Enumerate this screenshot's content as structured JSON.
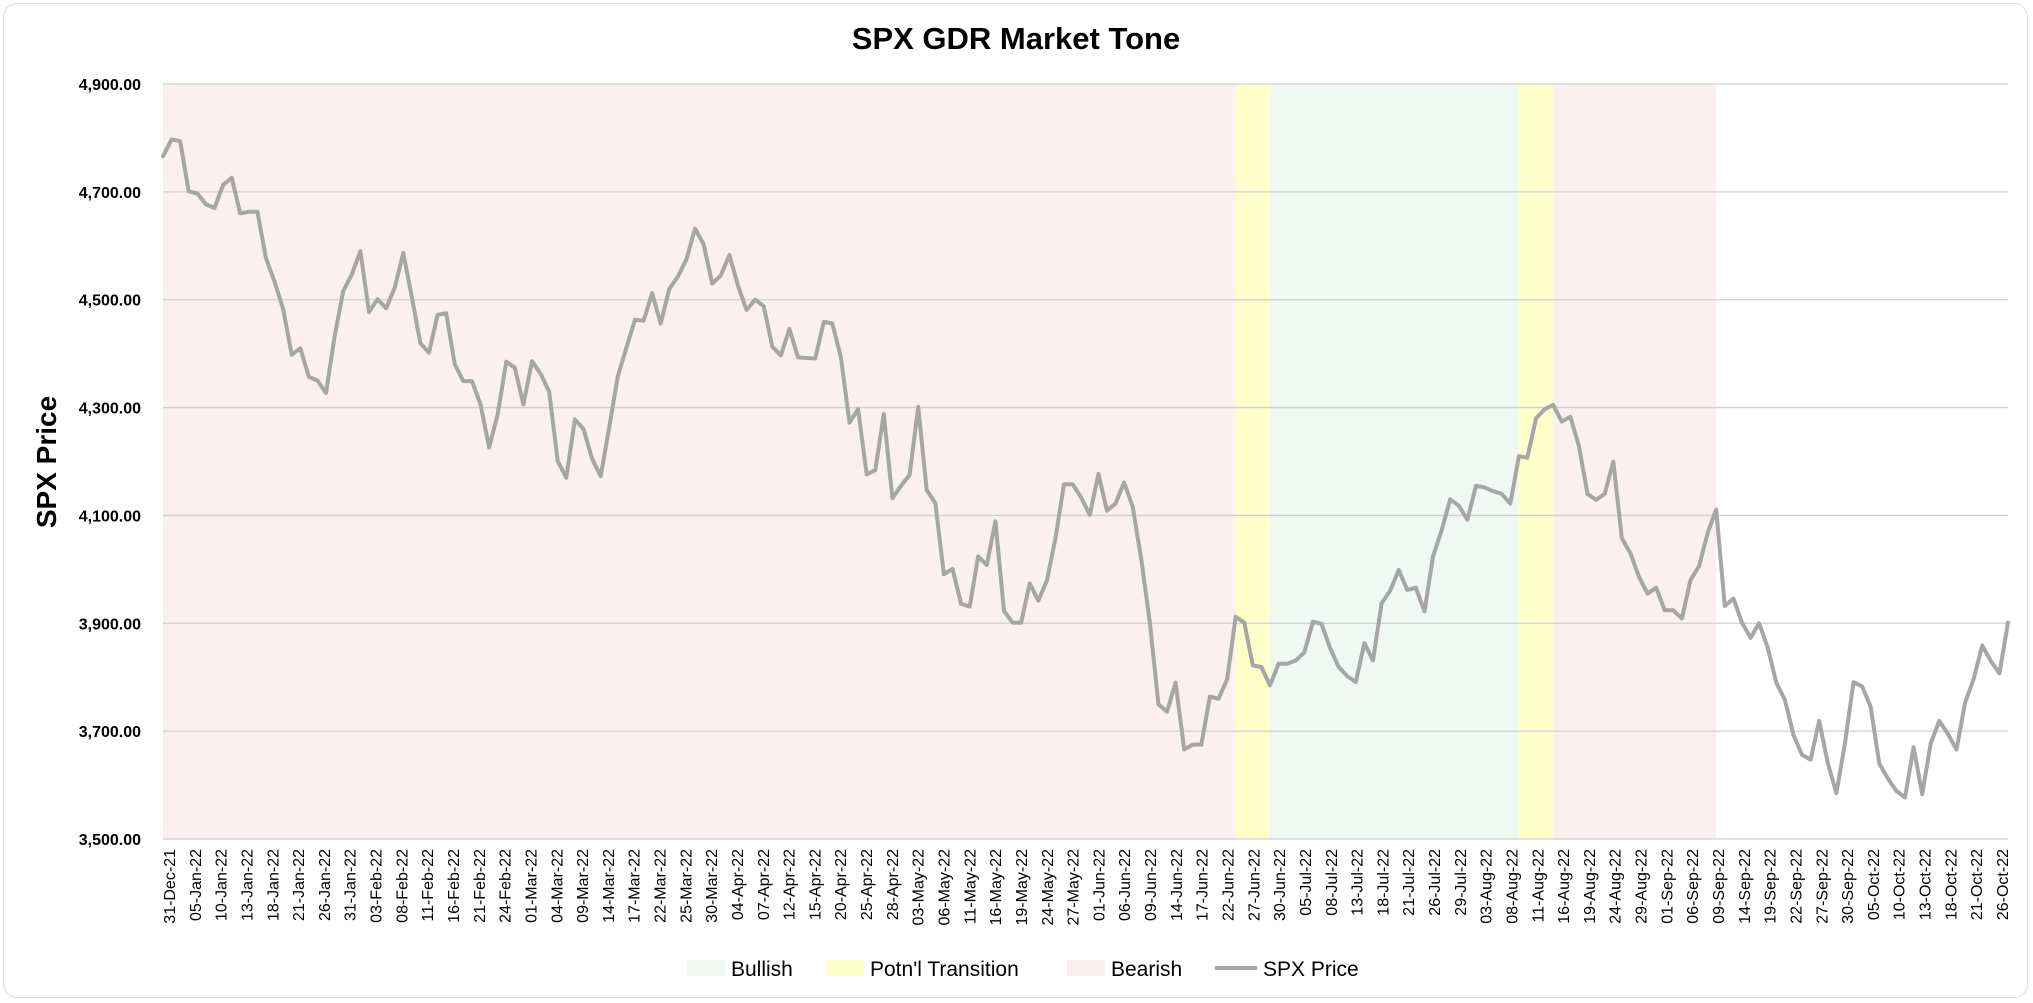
{
  "chart_data": {
    "type": "line",
    "title": "SPX GDR Market Tone",
    "ylabel": "SPX Price",
    "xlabel": "",
    "ylim": [
      3500,
      4900
    ],
    "yticks": [
      "4,900.00",
      "4,700.00",
      "4,500.00",
      "4,300.00",
      "4,100.00",
      "3,900.00",
      "3,700.00",
      "3,500.00"
    ],
    "ytick_values": [
      4900,
      4700,
      4500,
      4300,
      4100,
      3900,
      3700,
      3500
    ],
    "grid": "horizontal",
    "legend_position": "bottom",
    "x_tick_labels": [
      "31-Dec-21",
      "05-Jan-22",
      "10-Jan-22",
      "13-Jan-22",
      "18-Jan-22",
      "21-Jan-22",
      "26-Jan-22",
      "31-Jan-22",
      "03-Feb-22",
      "08-Feb-22",
      "11-Feb-22",
      "16-Feb-22",
      "21-Feb-22",
      "24-Feb-22",
      "01-Mar-22",
      "04-Mar-22",
      "09-Mar-22",
      "14-Mar-22",
      "17-Mar-22",
      "22-Mar-22",
      "25-Mar-22",
      "30-Mar-22",
      "04-Apr-22",
      "07-Apr-22",
      "12-Apr-22",
      "15-Apr-22",
      "20-Apr-22",
      "25-Apr-22",
      "28-Apr-22",
      "03-May-22",
      "06-May-22",
      "11-May-22",
      "16-May-22",
      "19-May-22",
      "24-May-22",
      "27-May-22",
      "01-Jun-22",
      "06-Jun-22",
      "09-Jun-22",
      "14-Jun-22",
      "17-Jun-22",
      "22-Jun-22",
      "27-Jun-22",
      "30-Jun-22",
      "05-Jul-22",
      "08-Jul-22",
      "13-Jul-22",
      "18-Jul-22",
      "21-Jul-22",
      "26-Jul-22",
      "29-Jul-22",
      "03-Aug-22",
      "08-Aug-22",
      "11-Aug-22",
      "16-Aug-22",
      "19-Aug-22",
      "24-Aug-22",
      "29-Aug-22",
      "01-Sep-22",
      "06-Sep-22",
      "09-Sep-22",
      "14-Sep-22",
      "19-Sep-22",
      "22-Sep-22",
      "27-Sep-22",
      "30-Sep-22",
      "05-Oct-22",
      "10-Oct-22",
      "13-Oct-22",
      "18-Oct-22",
      "21-Oct-22",
      "26-Oct-22"
    ],
    "regions": [
      {
        "tone": "Bearish",
        "from_index": 0,
        "to_index": 125
      },
      {
        "tone": "Potn'l Transition",
        "from_index": 125,
        "to_index": 129
      },
      {
        "tone": "Bullish",
        "from_index": 129,
        "to_index": 158
      },
      {
        "tone": "Potn'l Transition",
        "from_index": 158,
        "to_index": 162
      },
      {
        "tone": "Bearish",
        "from_index": 162,
        "to_index": 181
      }
    ],
    "series": [
      {
        "name": "SPX Price",
        "color": "#a6a6a6",
        "values": [
          4766,
          4797,
          4794,
          4701,
          4697,
          4677,
          4670,
          4713,
          4726,
          4660,
          4663,
          4663,
          4577,
          4533,
          4483,
          4398,
          4410,
          4357,
          4350,
          4327,
          4432,
          4516,
          4547,
          4590,
          4477,
          4501,
          4484,
          4522,
          4587,
          4504,
          4419,
          4402,
          4472,
          4475,
          4380,
          4349,
          4349,
          4306,
          4226,
          4288,
          4385,
          4374,
          4306,
          4386,
          4363,
          4329,
          4201,
          4170,
          4278,
          4260,
          4205,
          4173,
          4263,
          4358,
          4411,
          4463,
          4461,
          4512,
          4456,
          4520,
          4543,
          4575,
          4632,
          4603,
          4530,
          4545,
          4583,
          4526,
          4481,
          4500,
          4488,
          4413,
          4397,
          4446,
          4393,
          4392,
          4391,
          4459,
          4456,
          4393,
          4272,
          4297,
          4176,
          4184,
          4288,
          4132,
          4155,
          4175,
          4301,
          4147,
          4123,
          3991,
          4001,
          3936,
          3931,
          4024,
          4008,
          4089,
          3923,
          3901,
          3901,
          3974,
          3942,
          3979,
          4058,
          4158,
          4158,
          4133,
          4101,
          4177,
          4109,
          4122,
          4161,
          4116,
          4018,
          3901,
          3750,
          3736,
          3790,
          3666,
          3675,
          3675,
          3764,
          3760,
          3796,
          3912,
          3901,
          3822,
          3819,
          3785,
          3825,
          3825,
          3831,
          3846,
          3903,
          3899,
          3854,
          3819,
          3802,
          3791,
          3863,
          3831,
          3937,
          3960,
          3999,
          3962,
          3966,
          3922,
          4024,
          4072,
          4130,
          4118,
          4092,
          4155,
          4152,
          4145,
          4140,
          4122,
          4210,
          4207,
          4280,
          4297,
          4305,
          4274,
          4283,
          4229,
          4140,
          4129,
          4140,
          4200,
          4058,
          4030,
          3986,
          3955,
          3966,
          3924,
          3924,
          3909,
          3980,
          4006,
          4068,
          4111,
          3932,
          3946,
          3901,
          3873,
          3900,
          3855,
          3790,
          3758,
          3693,
          3656,
          3647,
          3719,
          3641,
          3585,
          3678,
          3791,
          3783,
          3745,
          3640,
          3612,
          3589,
          3577,
          3670,
          3583,
          3678,
          3719,
          3695,
          3666,
          3753,
          3797,
          3859,
          3830,
          3807,
          3901
        ]
      }
    ],
    "legend": [
      {
        "label": "Bullish",
        "kind": "box",
        "color": "#eff8f3"
      },
      {
        "label": "Potn'l Transition",
        "kind": "box",
        "color": "#ffffcc"
      },
      {
        "label": "Bearish",
        "kind": "box",
        "color": "#fbefef"
      },
      {
        "label": "SPX Price",
        "kind": "line",
        "color": "#a6a6a6"
      }
    ]
  },
  "colors": {
    "bullish": "#eff8f3",
    "transition": "#ffffcc",
    "bearish": "#fbefef",
    "line": "#a6a6a6",
    "grid": "#d0d0d0"
  }
}
